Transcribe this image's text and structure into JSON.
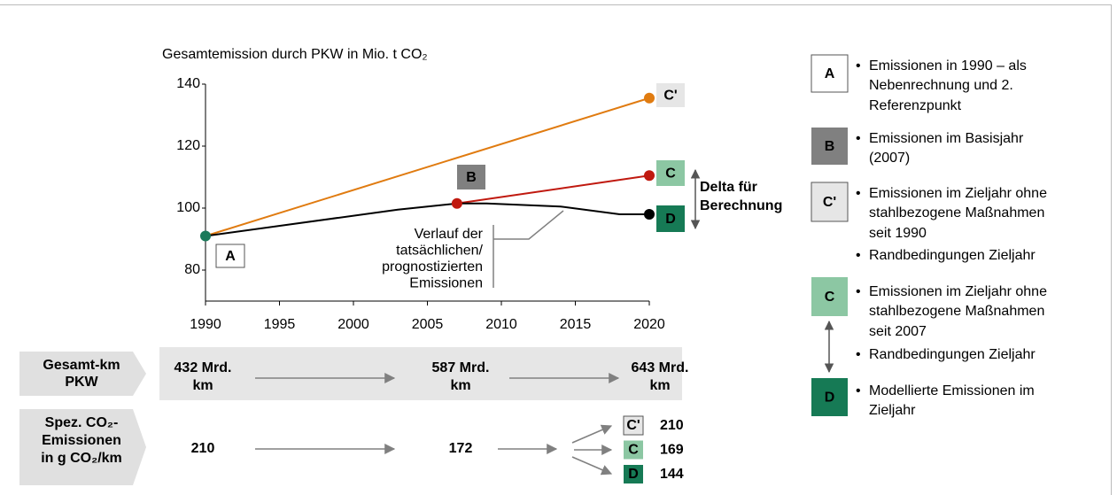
{
  "chart_data": {
    "type": "line",
    "title": "Gesamtemission durch PKW in Mio. t CO₂",
    "xlim": [
      1990,
      2020
    ],
    "xticks": [
      1990,
      1995,
      2000,
      2005,
      2010,
      2015,
      2020
    ],
    "ylim": [
      70,
      140
    ],
    "yticks": [
      80,
      100,
      120,
      140
    ],
    "series": [
      {
        "color": "#e07b10",
        "x": [
          1990,
          2020
        ],
        "values": [
          91,
          135.5
        ],
        "marker_colors": [
          null,
          "#e07b10"
        ]
      },
      {
        "color": "#c0190f",
        "x": [
          2007,
          2020
        ],
        "values": [
          101.5,
          110.5
        ],
        "marker_colors": [
          "#c0190f",
          "#c0190f"
        ]
      },
      {
        "color": "#000000",
        "x": [
          1990,
          2003,
          2007,
          2009,
          2014,
          2018,
          2020
        ],
        "values": [
          91,
          99.5,
          101.5,
          101.5,
          100.5,
          98,
          98
        ],
        "marker_colors": [
          "#1a7a5a",
          null,
          null,
          null,
          null,
          null,
          "#000000"
        ]
      }
    ],
    "point_labels": [
      {
        "text": "A",
        "fill": "#ffffff",
        "text_color": "#000000"
      },
      {
        "text": "B",
        "fill": "#808080",
        "text_color": "#ffffff"
      },
      {
        "text": "C'",
        "fill": "#e6e6e6",
        "text_color": "#000000"
      },
      {
        "text": "C",
        "fill": "#8cc7a3",
        "text_color": "#000000"
      },
      {
        "text": "D",
        "fill": "#167a55",
        "text_color": "#ffffff"
      }
    ],
    "delta_label": [
      "Delta für",
      "Berechnung"
    ],
    "annotation": [
      "Verlauf der",
      "tatsächlichen/",
      "prognostizierten",
      "Emissionen"
    ]
  },
  "rows": [
    {
      "label": [
        "Gesamt-km",
        "PKW"
      ],
      "values": [
        [
          "432 Mrd.",
          "km"
        ],
        [
          "587 Mrd.",
          "km"
        ],
        [
          "643 Mrd.",
          "km"
        ]
      ]
    },
    {
      "label": [
        "Spez. CO₂-",
        "Emissionen",
        "in g CO₂/km"
      ],
      "values": [
        210,
        172
      ],
      "targets": [
        {
          "label": "C'",
          "value": 210
        },
        {
          "label": "C",
          "value": 169
        },
        {
          "label": "D",
          "value": 144
        }
      ]
    }
  ],
  "legend": [
    {
      "label": "A",
      "items": [
        [
          "Emissionen in 1990 – als",
          "Nebenrechnung und 2.",
          "Referenzpunkt"
        ]
      ]
    },
    {
      "label": "B",
      "items": [
        [
          "Emissionen im Basisjahr",
          "(2007)"
        ]
      ]
    },
    {
      "label": "C'",
      "items": [
        [
          "Emissionen im Zieljahr ohne",
          "stahlbezogene Maßnahmen",
          "seit 1990"
        ],
        [
          "Randbedingungen Zieljahr"
        ]
      ]
    },
    {
      "label": "C",
      "items": [
        [
          "Emissionen im Zieljahr ohne",
          "stahlbezogene Maßnahmen",
          "seit 2007"
        ],
        [
          "Randbedingungen Zieljahr"
        ]
      ]
    },
    {
      "label": "D",
      "items": [
        [
          "Modellierte Emissionen im",
          "Zieljahr"
        ]
      ]
    }
  ]
}
